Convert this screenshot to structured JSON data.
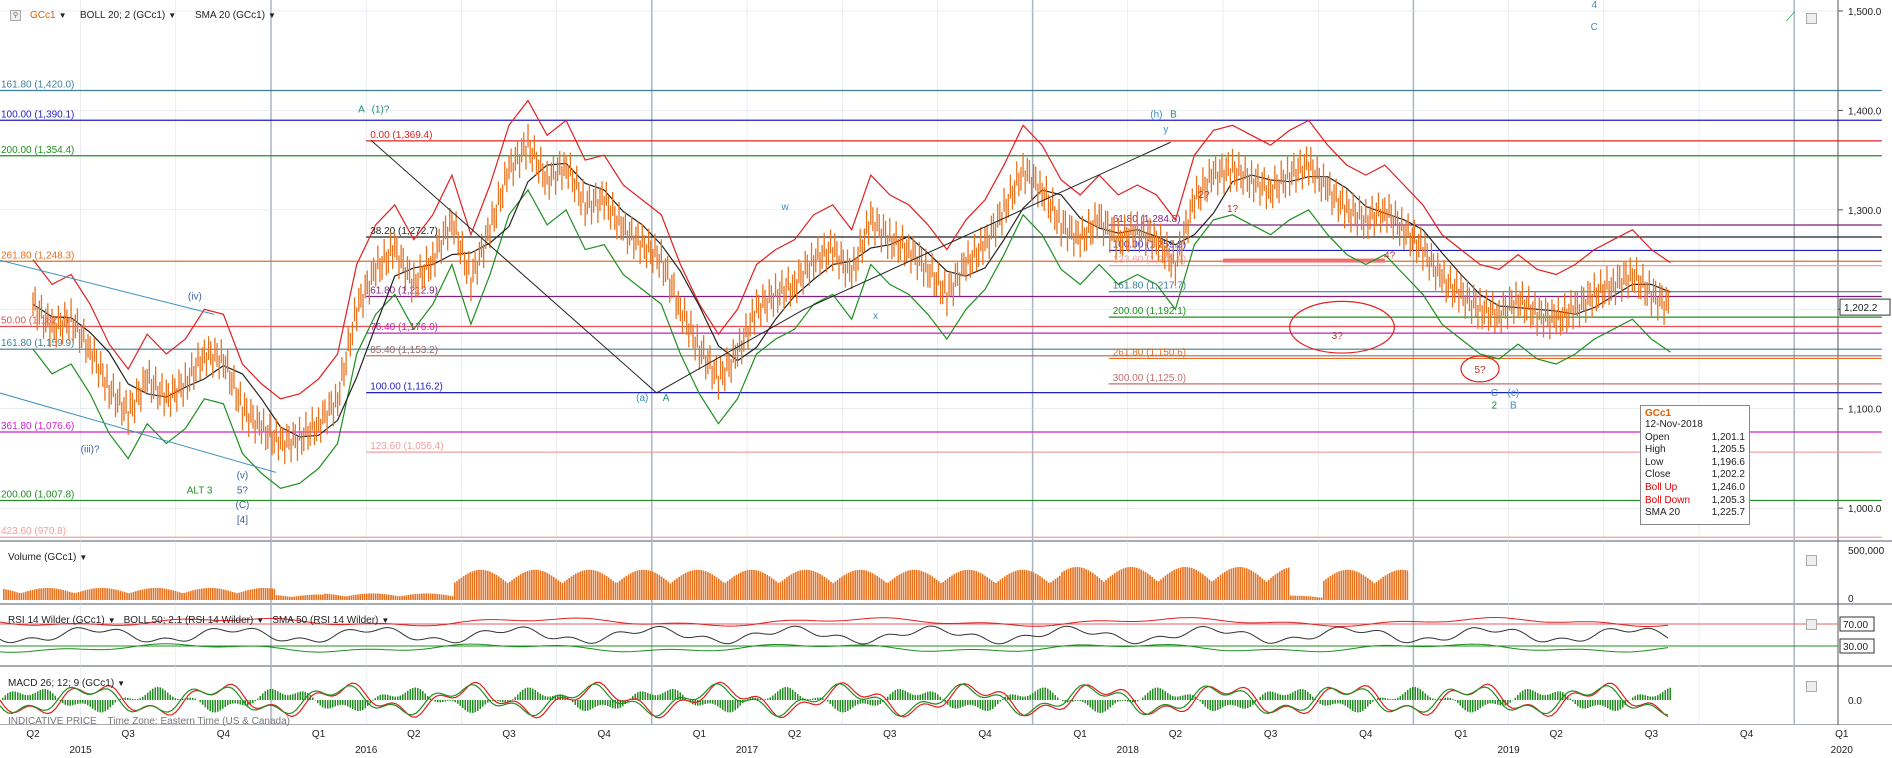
{
  "header": {
    "symbol": "GCc1",
    "study1": "BOLL 20; 2 (GCc1)",
    "study2": "SMA 20 (GCc1)",
    "volume_label": "Volume (GCc1)",
    "rsi_label": "RSI 14 Wilder (GCc1)",
    "rsi_boll_label": "BOLL 50; 2.1 (RSI 14 Wilder)",
    "rsi_sma_label": "SMA 50 (RSI 14 Wilder)",
    "macd_label": "MACD 26; 12; 9 (GCc1)",
    "footer_note": "INDICATIVE PRICE",
    "timezone_note": "Time Zone: Eastern Time (US & Canada)"
  },
  "info_box": {
    "symbol": "GCc1",
    "date": "12-Nov-2018",
    "rows": [
      {
        "label": "Open",
        "value": "1,201.1",
        "red": false
      },
      {
        "label": "High",
        "value": "1,205.5",
        "red": false
      },
      {
        "label": "Low",
        "value": "1,196.6",
        "red": false
      },
      {
        "label": "Close",
        "value": "1,202.2",
        "red": false
      },
      {
        "label": "Boll Up",
        "value": "1,246.0",
        "red": true
      },
      {
        "label": "Boll Down",
        "value": "1,205.3",
        "red": true
      },
      {
        "label": "SMA 20",
        "value": "1,225.7",
        "red": false
      }
    ]
  },
  "chart_data": {
    "type": "line",
    "title": "",
    "instrument": "GCc1",
    "y_axis": {
      "ticks": [
        "1,500.0",
        "1,400.0",
        "1,300.0",
        "1,200.0",
        "1,100.0",
        "1,000.0"
      ],
      "tick_values": [
        1500,
        1400,
        1300,
        1200,
        1100,
        1000
      ],
      "range": [
        968,
        1505
      ],
      "last_price_label": "1,202.2",
      "last_price": 1202.2
    },
    "volume_axis": {
      "ticks": [
        "500,000",
        "0"
      ]
    },
    "rsi_axis": {
      "ticks": [
        "70.00",
        "30.00"
      ]
    },
    "macd_axis": {
      "ticks": [
        "0.0"
      ]
    },
    "x_axis": {
      "quarters": [
        "Q2",
        "Q3",
        "Q4",
        "Q1",
        "Q2",
        "Q3",
        "Q4",
        "Q1",
        "Q2",
        "Q3",
        "Q4",
        "Q1",
        "Q2",
        "Q3",
        "Q4",
        "Q1",
        "Q2",
        "Q3",
        "Q4",
        "Q1"
      ],
      "quarter_index": [
        0.0,
        1.0,
        2.0,
        3.0,
        4.0,
        5.0,
        6.0,
        7.0,
        8.0,
        9.0,
        10.0,
        11.0,
        12.0,
        13.0,
        14.0,
        15.0,
        16.0,
        17.0,
        18.0,
        19.0
      ],
      "years": [
        "2015",
        "2016",
        "2017",
        "2018",
        "2019",
        "2020"
      ],
      "year_index": [
        0.5,
        3.5,
        7.5,
        11.5,
        15.5,
        19.0
      ],
      "year_boundaries": [
        2.5,
        6.5,
        10.5,
        14.5,
        18.5
      ]
    },
    "price_path": [
      [
        0.0,
        1205
      ],
      [
        0.2,
        1180
      ],
      [
        0.4,
        1190
      ],
      [
        0.6,
        1160
      ],
      [
        0.8,
        1120
      ],
      [
        1.0,
        1095
      ],
      [
        1.2,
        1130
      ],
      [
        1.4,
        1110
      ],
      [
        1.6,
        1125
      ],
      [
        1.8,
        1155
      ],
      [
        2.0,
        1150
      ],
      [
        2.2,
        1100
      ],
      [
        2.4,
        1080
      ],
      [
        2.6,
        1065
      ],
      [
        2.8,
        1070
      ],
      [
        3.0,
        1085
      ],
      [
        3.2,
        1110
      ],
      [
        3.4,
        1200
      ],
      [
        3.6,
        1240
      ],
      [
        3.8,
        1260
      ],
      [
        4.0,
        1225
      ],
      [
        4.2,
        1250
      ],
      [
        4.4,
        1290
      ],
      [
        4.6,
        1230
      ],
      [
        4.8,
        1280
      ],
      [
        5.0,
        1340
      ],
      [
        5.2,
        1365
      ],
      [
        5.4,
        1330
      ],
      [
        5.6,
        1345
      ],
      [
        5.8,
        1305
      ],
      [
        6.0,
        1310
      ],
      [
        6.2,
        1280
      ],
      [
        6.4,
        1265
      ],
      [
        6.6,
        1250
      ],
      [
        6.8,
        1200
      ],
      [
        7.0,
        1160
      ],
      [
        7.2,
        1130
      ],
      [
        7.4,
        1155
      ],
      [
        7.6,
        1200
      ],
      [
        7.8,
        1215
      ],
      [
        8.0,
        1225
      ],
      [
        8.2,
        1250
      ],
      [
        8.4,
        1260
      ],
      [
        8.6,
        1235
      ],
      [
        8.8,
        1290
      ],
      [
        9.0,
        1270
      ],
      [
        9.2,
        1260
      ],
      [
        9.4,
        1240
      ],
      [
        9.6,
        1215
      ],
      [
        9.8,
        1245
      ],
      [
        10.0,
        1265
      ],
      [
        10.2,
        1300
      ],
      [
        10.4,
        1340
      ],
      [
        10.6,
        1320
      ],
      [
        10.8,
        1285
      ],
      [
        11.0,
        1270
      ],
      [
        11.2,
        1290
      ],
      [
        11.4,
        1270
      ],
      [
        11.6,
        1280
      ],
      [
        11.8,
        1270
      ],
      [
        12.0,
        1245
      ],
      [
        12.2,
        1310
      ],
      [
        12.4,
        1335
      ],
      [
        12.6,
        1340
      ],
      [
        12.8,
        1330
      ],
      [
        13.0,
        1320
      ],
      [
        13.2,
        1335
      ],
      [
        13.4,
        1345
      ],
      [
        13.6,
        1320
      ],
      [
        13.8,
        1300
      ],
      [
        14.0,
        1290
      ],
      [
        14.2,
        1300
      ],
      [
        14.4,
        1280
      ],
      [
        14.6,
        1260
      ],
      [
        14.8,
        1230
      ],
      [
        15.0,
        1215
      ],
      [
        15.2,
        1200
      ],
      [
        15.4,
        1195
      ],
      [
        15.6,
        1210
      ],
      [
        15.8,
        1195
      ],
      [
        16.0,
        1190
      ],
      [
        16.2,
        1200
      ],
      [
        16.4,
        1215
      ],
      [
        16.6,
        1225
      ],
      [
        16.8,
        1235
      ],
      [
        17.0,
        1215
      ],
      [
        17.2,
        1202
      ]
    ],
    "fib_levels": [
      {
        "label": "161.80 (1,420.0)",
        "value": 1420.0,
        "color": "#3d7f9a",
        "x0": -0.5,
        "x1": 19.0
      },
      {
        "label": "100.00 (1,390.1)",
        "value": 1390.1,
        "color": "#1f1fbf",
        "x0": -0.5,
        "x1": 19.0
      },
      {
        "label": "0.00 (1,369.4)",
        "value": 1369.4,
        "color": "#e02020",
        "x0": 3.5,
        "x1": 19.0
      },
      {
        "label": "200.00 (1,354.4)",
        "value": 1354.4,
        "color": "#1f8f1f",
        "x0": -0.5,
        "x1": 19.0
      },
      {
        "label": "61.80 (1,284.8)",
        "value": 1284.8,
        "color": "#7f1f7f",
        "x0": 11.3,
        "x1": 19.0
      },
      {
        "label": "38.20 (1,272.7)",
        "value": 1272.7,
        "color": "#222222",
        "x0": 3.5,
        "x1": 19.0
      },
      {
        "label": "100.00 (1,259.2)",
        "value": 1259.2,
        "color": "#1f1fbf",
        "x0": 11.3,
        "x1": 19.0
      },
      {
        "label": "261.80 (1,248.3)",
        "value": 1248.3,
        "color": "#e07020",
        "x0": -0.5,
        "x1": 19.0
      },
      {
        "label": "123.60 (1,243.9)",
        "value": 1243.9,
        "color": "#f0a0a0",
        "x0": 11.3,
        "x1": 19.0
      },
      {
        "label": "161.80 (1,217.7)",
        "value": 1217.7,
        "color": "#3d7f9a",
        "x0": 11.3,
        "x1": 19.0
      },
      {
        "label": "61.80 (1,212.9)",
        "value": 1212.9,
        "color": "#7f1f7f",
        "x0": 3.5,
        "x1": 19.0
      },
      {
        "label": "200.00 (1,192.1)",
        "value": 1192.1,
        "color": "#1f8f1f",
        "x0": 11.3,
        "x1": 19.0
      },
      {
        "label": "50.00 (1,182.7)",
        "value": 1182.7,
        "color": "#e05050",
        "x0": -0.5,
        "x1": 19.0
      },
      {
        "label": "76.40 (1,176.0)",
        "value": 1176.0,
        "color": "#c020c0",
        "x0": 3.5,
        "x1": 19.0
      },
      {
        "label": "161.80 (1,159.9)",
        "value": 1159.9,
        "color": "#3d7f9a",
        "x0": -0.5,
        "x1": 19.0
      },
      {
        "label": "85.40 (1,153.2)",
        "value": 1153.2,
        "color": "#9a6a6a",
        "x0": 3.5,
        "x1": 19.0
      },
      {
        "label": "261.80 (1,150.6)",
        "value": 1150.6,
        "color": "#e07020",
        "x0": 11.3,
        "x1": 19.0
      },
      {
        "label": "300.00 (1,125.0)",
        "value": 1125.0,
        "color": "#c07070",
        "x0": 11.3,
        "x1": 19.0
      },
      {
        "label": "100.00 (1,116.2)",
        "value": 1116.2,
        "color": "#1f1fbf",
        "x0": 3.5,
        "x1": 19.0
      },
      {
        "label": "361.80 (1,076.6)",
        "value": 1076.6,
        "color": "#d020d0",
        "x0": -0.5,
        "x1": 19.0
      },
      {
        "label": "123.60 (1,056.4)",
        "value": 1056.4,
        "color": "#f0a0a0",
        "x0": 3.5,
        "x1": 19.0
      },
      {
        "label": "200.00 (1,007.8)",
        "value": 1007.8,
        "color": "#1f8f1f",
        "x0": -0.5,
        "x1": 19.0
      },
      {
        "label": "423.60 (970.8)",
        "value": 970.8,
        "color": "#f0a0a0",
        "x0": -0.5,
        "x1": 19.0
      }
    ],
    "target_box": {
      "x0": 12.5,
      "x1": 14.2,
      "value": 1249,
      "color": "#f07070"
    },
    "wave_labels": [
      {
        "text": "A",
        "x": 3.45,
        "y": 1398,
        "color": "#1f8f6f"
      },
      {
        "text": "(1)?",
        "x": 3.65,
        "y": 1398,
        "color": "#1f8f6f"
      },
      {
        "text": "(iv)",
        "x": 1.7,
        "y": 1210,
        "color": "#3d5fa0"
      },
      {
        "text": "(iii)?",
        "x": 0.6,
        "y": 1056,
        "color": "#3d5fa0"
      },
      {
        "text": "(v)",
        "x": 2.2,
        "y": 1030,
        "color": "#3d5fa0"
      },
      {
        "text": "5?",
        "x": 2.2,
        "y": 1015,
        "color": "#3d5fa0"
      },
      {
        "text": "(C)",
        "x": 2.2,
        "y": 1000,
        "color": "#3d5fa0"
      },
      {
        "text": "[4]",
        "x": 2.2,
        "y": 985,
        "color": "#3d5fa0"
      },
      {
        "text": "ALT 3",
        "x": 1.75,
        "y": 1015,
        "color": "#1f8f1f"
      },
      {
        "text": "(a)",
        "x": 6.4,
        "y": 1108,
        "color": "#3d8fbf"
      },
      {
        "text": "A",
        "x": 6.65,
        "y": 1108,
        "color": "#1f8f6f"
      },
      {
        "text": "w",
        "x": 7.9,
        "y": 1300,
        "color": "#3d8fbf"
      },
      {
        "text": "x",
        "x": 8.85,
        "y": 1190,
        "color": "#3d8fbf"
      },
      {
        "text": "y",
        "x": 11.9,
        "y": 1378,
        "color": "#3d8fbf"
      },
      {
        "text": "(h)",
        "x": 11.8,
        "y": 1393,
        "color": "#3d8fbf"
      },
      {
        "text": "B",
        "x": 11.98,
        "y": 1393,
        "color": "#1f8f6f"
      },
      {
        "text": "2?",
        "x": 12.3,
        "y": 1312,
        "color": "#c03030"
      },
      {
        "text": "1?",
        "x": 12.6,
        "y": 1298,
        "color": "#c03030"
      },
      {
        "text": "4?",
        "x": 14.25,
        "y": 1251,
        "color": "#c03030"
      },
      {
        "text": "3?",
        "x": 13.7,
        "y": 1170,
        "color": "#c03030"
      },
      {
        "text": "5?",
        "x": 15.2,
        "y": 1136,
        "color": "#c03030"
      },
      {
        "text": "C",
        "x": 15.35,
        "y": 1113,
        "color": "#3d8fbf"
      },
      {
        "text": "(c)",
        "x": 15.55,
        "y": 1113,
        "color": "#3d8fbf"
      },
      {
        "text": "2",
        "x": 15.35,
        "y": 1100,
        "color": "#1f8f1f"
      },
      {
        "text": "B",
        "x": 15.55,
        "y": 1100,
        "color": "#3d8fbf"
      },
      {
        "text": "4",
        "x": 16.4,
        "y": 1503,
        "color": "#3d8fbf"
      },
      {
        "text": "C",
        "x": 16.4,
        "y": 1481,
        "color": "#3d8fbf"
      }
    ],
    "trend_lines": [
      {
        "points": [
          [
            -0.5,
            1253
          ],
          [
            1.9,
            1195
          ]
        ],
        "color": "#3d8fbf"
      },
      {
        "points": [
          [
            -0.5,
            1120
          ],
          [
            2.55,
            1036
          ]
        ],
        "color": "#3d8fbf"
      },
      {
        "points": [
          [
            3.55,
            1370
          ],
          [
            6.55,
            1116
          ],
          [
            8.1,
            1200
          ],
          [
            11.95,
            1368
          ]
        ],
        "color": "#222222"
      }
    ],
    "ellipses": [
      {
        "cx": 13.75,
        "cy": 1182,
        "rx": 0.55,
        "ry": 26,
        "color": "#e02020"
      },
      {
        "cx": 15.2,
        "cy": 1140,
        "rx": 0.2,
        "ry": 13,
        "color": "#e02020"
      }
    ]
  },
  "colors": {
    "price": "#e8731f",
    "boll_upper": "#e02020",
    "boll_lower": "#1f8f1f",
    "sma": "#222222",
    "volume": "#e8731f",
    "rsi": "#333333",
    "macd_line": "#e02020",
    "signal_line": "#1f8f1f",
    "hist": "#1f8f1f",
    "grid": "#d6dce6",
    "year_sep": "#aab4c4"
  }
}
